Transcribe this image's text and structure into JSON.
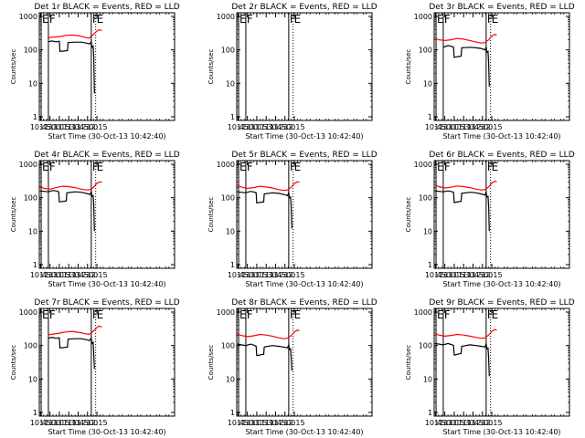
{
  "chart_data": {
    "type": "line",
    "shared": {
      "xlabel": "Start Time (30-Oct-13 10:42:40)",
      "ylabel": "Counts/sec",
      "x_range_min": [
        43,
        259
      ],
      "y_range": [
        1,
        1000
      ],
      "y_scale": "log",
      "x_tick_minutes": [
        45,
        60,
        75,
        90,
        105,
        120,
        135
      ],
      "x_tick_labels": [
        "10:45",
        "11:00",
        "11:15",
        "11:30",
        "11:45",
        "12:00",
        "12:15"
      ],
      "y_tick_values": [
        1,
        10,
        100,
        1000
      ],
      "y_tick_labels": [
        "1",
        "10",
        "100",
        "1000"
      ],
      "series_names": [
        "Events",
        "LLD"
      ],
      "series_colors": [
        "#000000",
        "#ff0000"
      ]
    },
    "panels": [
      {
        "title": "Det 1r BLACK = Events, RED = LLD",
        "markers": [
          {
            "label": "E",
            "minute": 46,
            "style": "solid"
          },
          {
            "label": "F",
            "minute": 57.5,
            "style": "solid"
          },
          {
            "label": "F",
            "minute": 126,
            "style": "solid"
          },
          {
            "label": "E",
            "minute": 133,
            "style": "dotted"
          }
        ],
        "lld": {
          "x": [
            57.5,
            65,
            75,
            85,
            95,
            105,
            115,
            122,
            128,
            133,
            138,
            143
          ],
          "y": [
            230,
            240,
            250,
            270,
            280,
            265,
            240,
            225,
            270,
            340,
            400,
            380
          ]
        },
        "events": {
          "x": [
            57.5,
            63,
            70,
            75,
            76,
            88,
            89,
            100,
            110,
            118,
            123,
            126,
            127,
            129,
            130,
            131
          ],
          "y": [
            175,
            185,
            175,
            180,
            90,
            95,
            165,
            170,
            170,
            160,
            150,
            175,
            120,
            130,
            60,
            5
          ]
        }
      },
      {
        "title": "Det 2r BLACK = Events, RED = LLD",
        "markers": [
          {
            "label": "E",
            "minute": 46,
            "style": "solid"
          },
          {
            "label": "F",
            "minute": 57.5,
            "style": "solid"
          },
          {
            "label": "F",
            "minute": 126,
            "style": "solid"
          },
          {
            "label": "E",
            "minute": 133,
            "style": "dotted"
          }
        ],
        "lld": {
          "x": [],
          "y": []
        },
        "events": {
          "x": [],
          "y": []
        }
      },
      {
        "title": "Det 3r BLACK = Events, RED = LLD",
        "markers": [
          {
            "label": "E",
            "minute": 46,
            "style": "solid"
          },
          {
            "label": "F",
            "minute": 57.5,
            "style": "solid"
          },
          {
            "label": "F",
            "minute": 126,
            "style": "solid"
          },
          {
            "label": "E",
            "minute": 133,
            "style": "dotted"
          }
        ],
        "lld": {
          "x": [
            44,
            50,
            60,
            70,
            80,
            90,
            100,
            110,
            118,
            124,
            130,
            135,
            140,
            143
          ],
          "y": [
            230,
            200,
            190,
            200,
            220,
            210,
            190,
            170,
            160,
            165,
            200,
            260,
            290,
            280
          ]
        },
        "events": {
          "x": [
            57.5,
            65,
            72,
            74,
            75,
            86,
            87,
            100,
            110,
            118,
            124,
            126,
            127,
            129,
            130,
            131
          ],
          "y": [
            120,
            135,
            125,
            120,
            60,
            65,
            115,
            120,
            115,
            110,
            100,
            120,
            85,
            90,
            40,
            8
          ]
        }
      },
      {
        "title": "Det 4r BLACK = Events, RED = LLD",
        "markers": [
          {
            "label": "E",
            "minute": 46,
            "style": "solid"
          },
          {
            "label": "F",
            "minute": 57.5,
            "style": "solid"
          },
          {
            "label": "F",
            "minute": 126,
            "style": "solid"
          },
          {
            "label": "E",
            "minute": 133,
            "style": "dotted"
          }
        ],
        "lld": {
          "x": [
            44,
            50,
            60,
            70,
            80,
            90,
            100,
            110,
            118,
            124,
            130,
            135,
            140,
            143
          ],
          "y": [
            220,
            190,
            180,
            200,
            220,
            215,
            200,
            180,
            170,
            175,
            210,
            270,
            300,
            290
          ]
        },
        "events": {
          "x": [
            44,
            57.5,
            65,
            72,
            74,
            75,
            86,
            87,
            100,
            110,
            118,
            124,
            126,
            127,
            129,
            130,
            131
          ],
          "y": [
            160,
            150,
            165,
            155,
            150,
            75,
            80,
            140,
            150,
            145,
            135,
            125,
            150,
            110,
            115,
            60,
            10
          ]
        }
      },
      {
        "title": "Det 5r BLACK = Events, RED = LLD",
        "markers": [
          {
            "label": "E",
            "minute": 46,
            "style": "solid"
          },
          {
            "label": "F",
            "minute": 57.5,
            "style": "solid"
          },
          {
            "label": "F",
            "minute": 126,
            "style": "solid"
          },
          {
            "label": "E",
            "minute": 133,
            "style": "dotted"
          }
        ],
        "lld": {
          "x": [
            44,
            50,
            60,
            70,
            80,
            90,
            100,
            110,
            118,
            124,
            130,
            135,
            140,
            143
          ],
          "y": [
            240,
            210,
            190,
            200,
            220,
            210,
            195,
            175,
            165,
            170,
            205,
            265,
            300,
            290
          ]
        },
        "events": {
          "x": [
            44,
            57.5,
            65,
            72,
            74,
            75,
            86,
            87,
            100,
            110,
            118,
            124,
            126,
            127,
            129,
            130,
            131
          ],
          "y": [
            150,
            140,
            155,
            145,
            140,
            70,
            75,
            130,
            140,
            135,
            125,
            115,
            140,
            100,
            105,
            50,
            12
          ]
        }
      },
      {
        "title": "Det 6r BLACK = Events, RED = LLD",
        "markers": [
          {
            "label": "E",
            "minute": 46,
            "style": "solid"
          },
          {
            "label": "F",
            "minute": 57.5,
            "style": "solid"
          },
          {
            "label": "F",
            "minute": 126,
            "style": "solid"
          },
          {
            "label": "E",
            "minute": 133,
            "style": "dotted"
          }
        ],
        "lld": {
          "x": [
            44,
            50,
            60,
            70,
            80,
            90,
            100,
            110,
            118,
            124,
            130,
            135,
            140,
            143
          ],
          "y": [
            250,
            215,
            195,
            205,
            225,
            215,
            200,
            180,
            170,
            175,
            210,
            275,
            310,
            300
          ]
        },
        "events": {
          "x": [
            44,
            57.5,
            65,
            72,
            74,
            75,
            86,
            87,
            100,
            110,
            118,
            124,
            126,
            127,
            129,
            130,
            131
          ],
          "y": [
            160,
            150,
            160,
            150,
            145,
            72,
            78,
            135,
            145,
            140,
            130,
            120,
            145,
            105,
            110,
            55,
            10
          ]
        }
      },
      {
        "title": "Det 7r BLACK = Events, RED = LLD",
        "markers": [
          {
            "label": "E",
            "minute": 46,
            "style": "solid"
          },
          {
            "label": "F",
            "minute": 57.5,
            "style": "solid"
          },
          {
            "label": "F",
            "minute": 126,
            "style": "solid"
          },
          {
            "label": "E",
            "minute": 133,
            "style": "dotted"
          }
        ],
        "lld": {
          "x": [
            57.5,
            65,
            75,
            85,
            95,
            105,
            115,
            122,
            128,
            133,
            138,
            143
          ],
          "y": [
            210,
            220,
            235,
            255,
            265,
            250,
            230,
            215,
            255,
            320,
            380,
            360
          ]
        },
        "events": {
          "x": [
            57.5,
            63,
            70,
            75,
            76,
            88,
            89,
            100,
            110,
            118,
            123,
            126,
            127,
            129,
            130,
            131
          ],
          "y": [
            165,
            175,
            165,
            170,
            85,
            90,
            155,
            160,
            160,
            150,
            140,
            165,
            115,
            125,
            55,
            20
          ]
        }
      },
      {
        "title": "Det 8r BLACK = Events, RED = LLD",
        "markers": [
          {
            "label": "E",
            "minute": 46,
            "style": "solid"
          },
          {
            "label": "F",
            "minute": 57.5,
            "style": "solid"
          },
          {
            "label": "F",
            "minute": 126,
            "style": "solid"
          },
          {
            "label": "E",
            "minute": 133,
            "style": "dotted"
          }
        ],
        "lld": {
          "x": [
            44,
            50,
            60,
            70,
            80,
            90,
            100,
            110,
            118,
            124,
            130,
            135,
            140,
            143
          ],
          "y": [
            230,
            200,
            185,
            195,
            215,
            205,
            190,
            170,
            160,
            165,
            200,
            255,
            290,
            280
          ]
        },
        "events": {
          "x": [
            44,
            57.5,
            65,
            72,
            74,
            75,
            86,
            87,
            100,
            110,
            118,
            124,
            126,
            127,
            129,
            130,
            131
          ],
          "y": [
            110,
            100,
            110,
            100,
            95,
            50,
            55,
            90,
            100,
            95,
            90,
            85,
            105,
            75,
            80,
            40,
            18
          ]
        }
      },
      {
        "title": "Det 9r BLACK = Events, RED = LLD",
        "markers": [
          {
            "label": "E",
            "minute": 46,
            "style": "solid"
          },
          {
            "label": "F",
            "minute": 57.5,
            "style": "solid"
          },
          {
            "label": "F",
            "minute": 126,
            "style": "solid"
          },
          {
            "label": "E",
            "minute": 133,
            "style": "dotted"
          }
        ],
        "lld": {
          "x": [
            44,
            50,
            60,
            70,
            80,
            90,
            100,
            110,
            118,
            124,
            130,
            135,
            140,
            143
          ],
          "y": [
            240,
            205,
            190,
            200,
            215,
            205,
            190,
            175,
            165,
            170,
            205,
            265,
            300,
            290
          ]
        },
        "events": {
          "x": [
            44,
            57.5,
            65,
            72,
            74,
            75,
            86,
            87,
            100,
            110,
            118,
            124,
            126,
            127,
            129,
            130,
            131
          ],
          "y": [
            115,
            105,
            115,
            105,
            100,
            52,
            58,
            95,
            105,
            100,
            95,
            90,
            110,
            80,
            85,
            42,
            12
          ]
        }
      }
    ]
  }
}
